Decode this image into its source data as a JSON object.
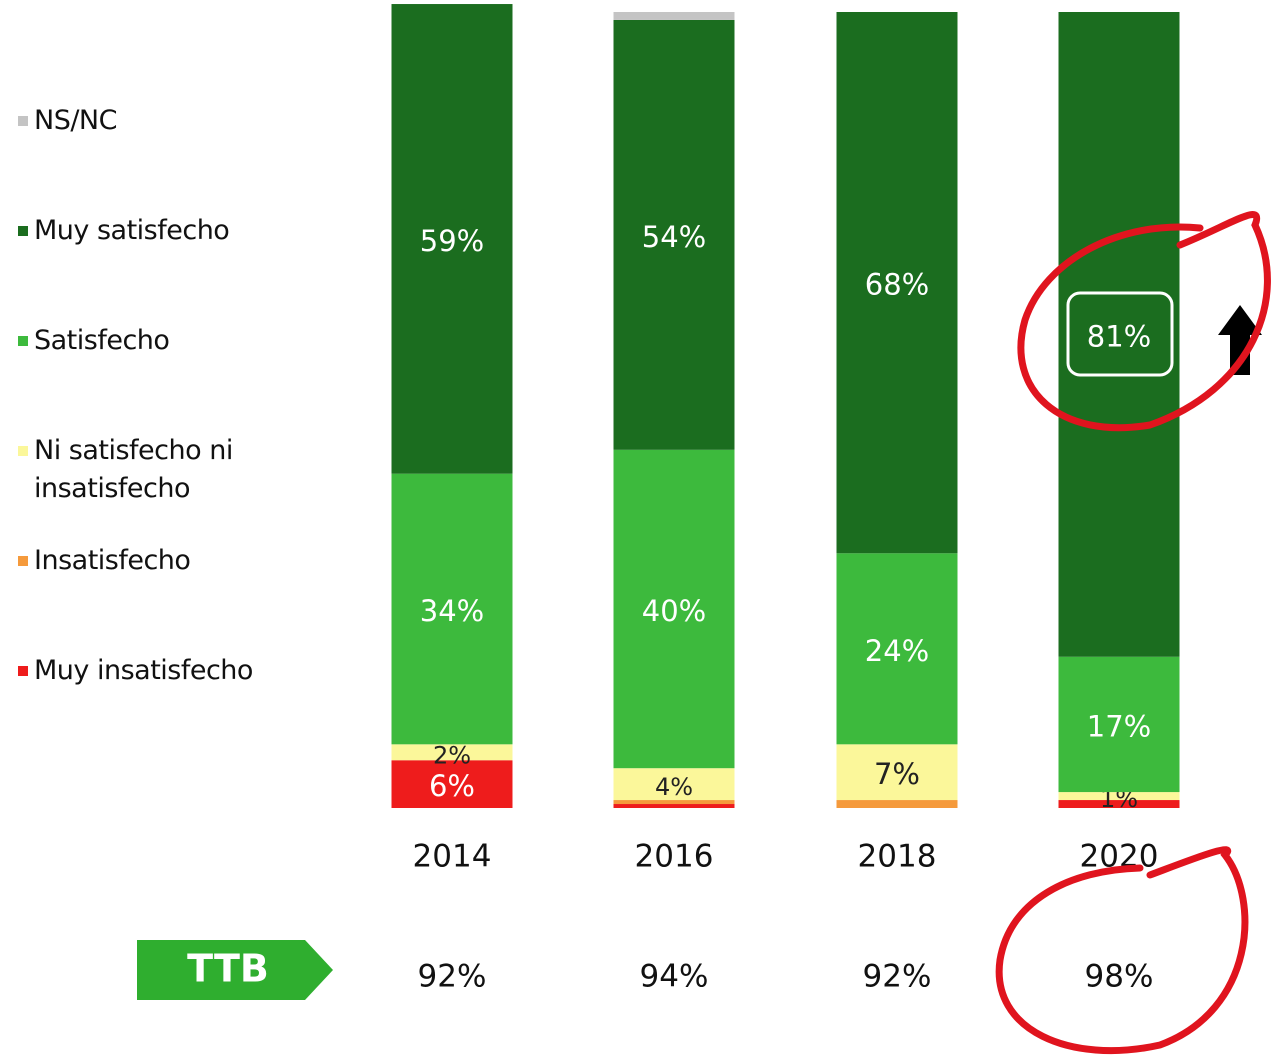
{
  "chart_data": {
    "type": "stacked_bar",
    "categories": [
      "2014",
      "2016",
      "2018",
      "2020"
    ],
    "ylim": [
      0,
      100
    ],
    "series": [
      {
        "name": "NS/NC",
        "color": "#c4c4c4",
        "values": [
          0,
          1,
          0,
          0
        ],
        "value_labels": [
          null,
          null,
          null,
          null
        ]
      },
      {
        "name": "Muy satisfecho",
        "color": "#1b6d1f",
        "values": [
          59,
          54,
          68,
          81
        ],
        "value_labels": [
          "59%",
          "54%",
          "68%",
          "81%"
        ]
      },
      {
        "name": "Satisfecho",
        "color": "#3dba3d",
        "values": [
          34,
          40,
          24,
          17
        ],
        "value_labels": [
          "34%",
          "40%",
          "24%",
          "17%"
        ]
      },
      {
        "name": "Ni satisfecho ni insatisfecho",
        "color": "#fbf79a",
        "values": [
          2,
          4,
          7,
          1
        ],
        "value_labels": [
          "2%",
          "4%",
          "7%",
          "1%"
        ]
      },
      {
        "name": "Insatisfecho",
        "color": "#f59a3c",
        "values": [
          0,
          0.5,
          1,
          0
        ],
        "value_labels": [
          null,
          null,
          null,
          null
        ]
      },
      {
        "name": "Muy insatisfecho",
        "color": "#ee1c1c",
        "values": [
          6,
          0.5,
          0,
          1
        ],
        "value_labels": [
          "6%",
          null,
          null,
          null
        ]
      }
    ],
    "ttb": {
      "label": "TTB",
      "values": [
        92,
        94,
        92,
        98
      ],
      "value_labels": [
        "92%",
        "94%",
        "92%",
        "98%"
      ]
    }
  }
}
